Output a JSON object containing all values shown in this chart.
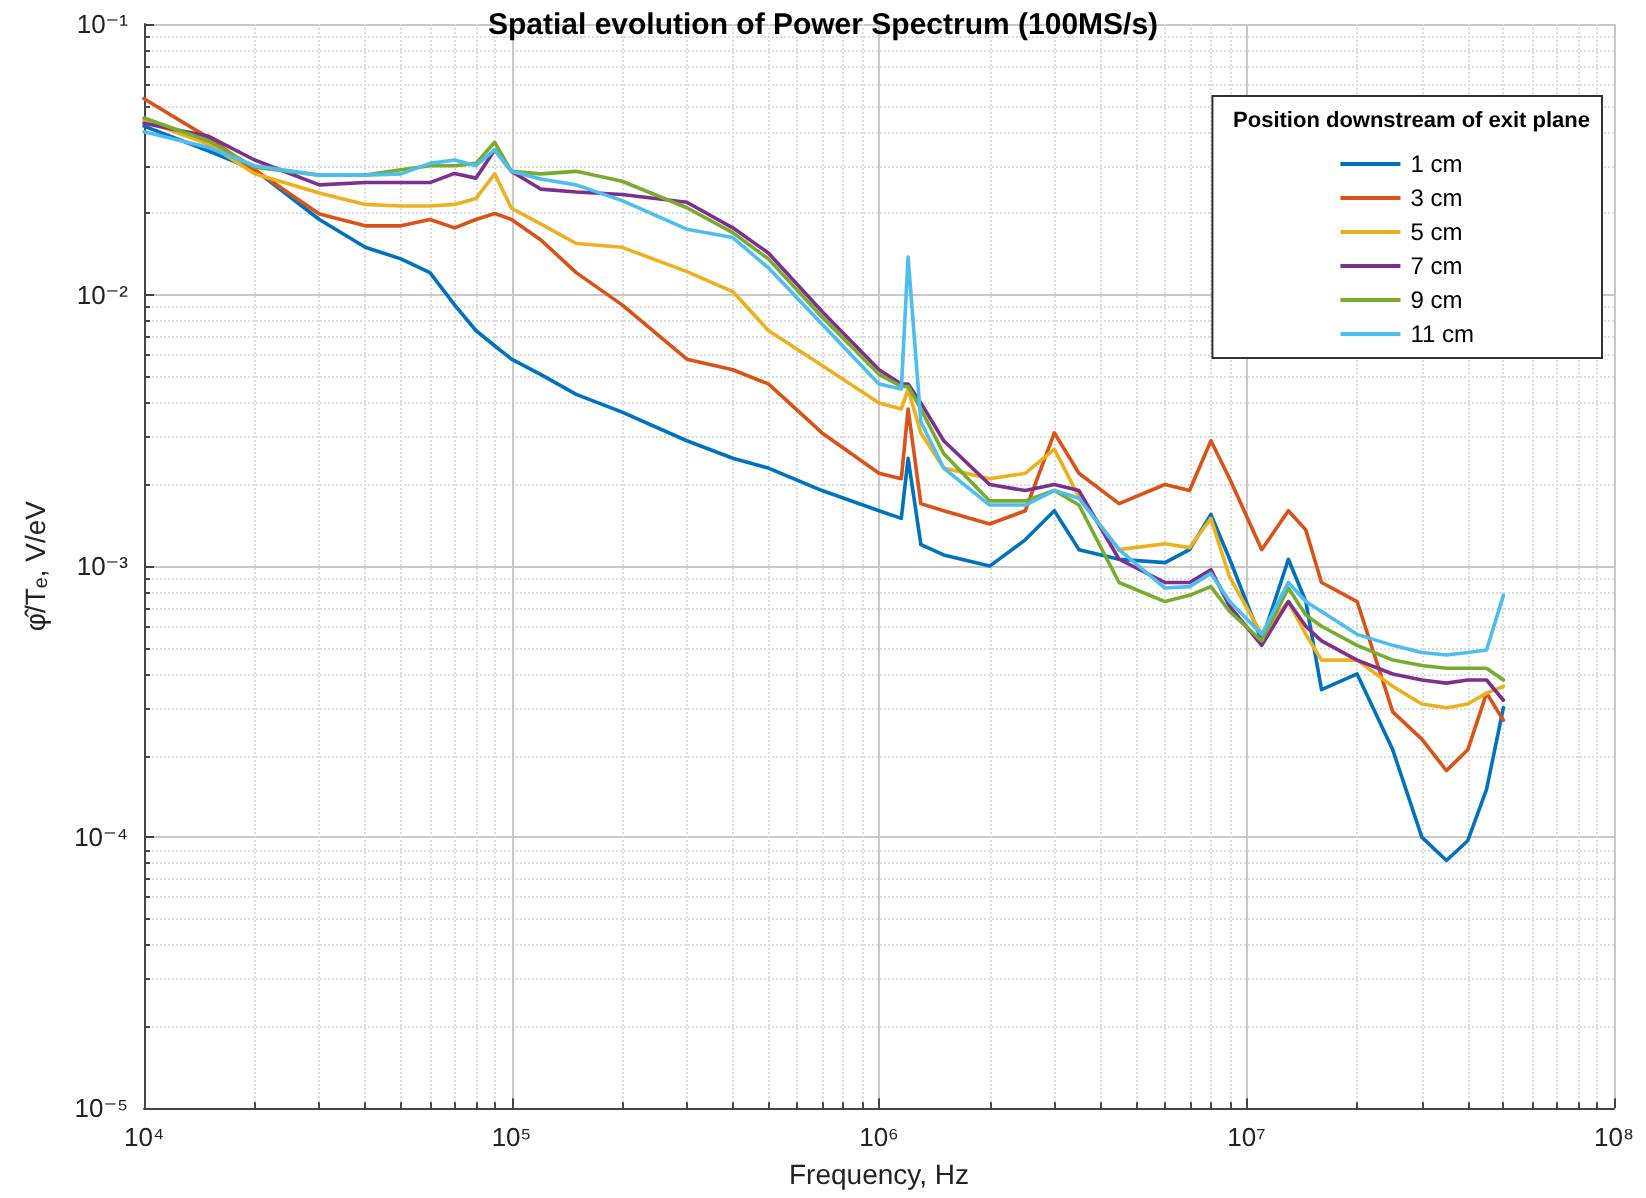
{
  "chart_data": {
    "type": "line",
    "title": "Spatial evolution of Power Spectrum (100MS/s)",
    "xlabel": "Frequency, Hz",
    "ylabel": "φ̂/T$_{e}$, V/eV",
    "legend_title": "Position downstream of exit plane",
    "x": [
      10000,
      15000,
      20000,
      30000,
      40000,
      50000,
      60000,
      70000,
      80000,
      90000,
      100000,
      120000,
      150000,
      200000,
      300000,
      400000,
      500000,
      700000,
      1000000,
      1150000,
      1200000,
      1300000,
      1500000,
      2000000,
      2500000,
      3000000,
      3500000,
      4500000,
      6000000,
      7000000,
      8000000,
      9000000,
      11000000,
      13000000,
      14500000,
      16000000,
      20000000,
      25000000,
      30000000,
      35000000,
      40000000,
      45000000,
      50000000
    ],
    "series": [
      {
        "name": "1 cm",
        "color": "#0072bd",
        "values": [
          0.042,
          0.034,
          0.029,
          0.019,
          0.015,
          0.0136,
          0.0121,
          0.0092,
          0.0074,
          0.0065,
          0.0058,
          0.0051,
          0.0043,
          0.0037,
          0.0029,
          0.0025,
          0.0023,
          0.0019,
          0.0016,
          0.0015,
          0.0025,
          0.0012,
          0.0011,
          0.001,
          0.00125,
          0.0016,
          0.00115,
          0.00106,
          0.00103,
          0.00115,
          0.00155,
          0.00106,
          0.00053,
          0.00106,
          0.00074,
          0.00035,
          0.0004,
          0.00021,
          0.0001,
          8.2e-05,
          9.7e-05,
          0.00015,
          0.0003
        ]
      },
      {
        "name": "3 cm",
        "color": "#d95319",
        "values": [
          0.053,
          0.038,
          0.029,
          0.0199,
          0.018,
          0.018,
          0.019,
          0.0177,
          0.019,
          0.02,
          0.019,
          0.016,
          0.0121,
          0.0092,
          0.0058,
          0.0053,
          0.0047,
          0.0031,
          0.0022,
          0.0021,
          0.0038,
          0.0017,
          0.0016,
          0.00143,
          0.0016,
          0.0031,
          0.0022,
          0.0017,
          0.002,
          0.0019,
          0.0029,
          0.0021,
          0.00115,
          0.0016,
          0.00136,
          0.00087,
          0.00074,
          0.00029,
          0.00023,
          0.000176,
          0.00021,
          0.00034,
          0.00027
        ]
      },
      {
        "name": "5 cm",
        "color": "#edb120",
        "values": [
          0.044,
          0.036,
          0.028,
          0.0238,
          0.0216,
          0.0213,
          0.0213,
          0.0216,
          0.0227,
          0.028,
          0.0209,
          0.0183,
          0.0155,
          0.015,
          0.0122,
          0.0103,
          0.0074,
          0.0055,
          0.004,
          0.0038,
          0.0045,
          0.0031,
          0.0023,
          0.0021,
          0.0022,
          0.0027,
          0.0018,
          0.00115,
          0.00121,
          0.00117,
          0.0015,
          0.00091,
          0.00056,
          0.00074,
          0.00056,
          0.00045,
          0.00045,
          0.00036,
          0.00031,
          0.0003,
          0.00031,
          0.00034,
          0.00036
        ]
      },
      {
        "name": "7 cm",
        "color": "#7e2f8e",
        "values": [
          0.043,
          0.0385,
          0.0315,
          0.0255,
          0.026,
          0.026,
          0.026,
          0.0281,
          0.027,
          0.0343,
          0.0286,
          0.0246,
          0.024,
          0.0235,
          0.022,
          0.0177,
          0.0143,
          0.0087,
          0.0053,
          0.0047,
          0.0047,
          0.004,
          0.0029,
          0.002,
          0.0019,
          0.002,
          0.0019,
          0.00106,
          0.00087,
          0.00087,
          0.00097,
          0.00071,
          0.00051,
          0.00074,
          0.0006,
          0.00053,
          0.00045,
          0.0004,
          0.00038,
          0.00037,
          0.00038,
          0.00038,
          0.00032
        ]
      },
      {
        "name": "9 cm",
        "color": "#77ac30",
        "values": [
          0.045,
          0.037,
          0.0296,
          0.0277,
          0.0277,
          0.029,
          0.03,
          0.03,
          0.0306,
          0.0366,
          0.0286,
          0.028,
          0.0286,
          0.0263,
          0.021,
          0.017,
          0.0136,
          0.0083,
          0.0051,
          0.0046,
          0.0046,
          0.0038,
          0.0026,
          0.00174,
          0.00174,
          0.0019,
          0.00168,
          0.00087,
          0.00074,
          0.00078,
          0.00084,
          0.00068,
          0.00053,
          0.00083,
          0.00066,
          0.0006,
          0.00051,
          0.00045,
          0.00043,
          0.00042,
          0.00042,
          0.00042,
          0.00038
        ]
      },
      {
        "name": "11 cm",
        "color": "#4dbeee",
        "values": [
          0.04,
          0.035,
          0.03,
          0.0277,
          0.0277,
          0.028,
          0.0306,
          0.0315,
          0.03,
          0.0343,
          0.0286,
          0.0268,
          0.0255,
          0.0223,
          0.0175,
          0.0163,
          0.0126,
          0.0078,
          0.0047,
          0.0045,
          0.0138,
          0.0034,
          0.0023,
          0.00168,
          0.00168,
          0.0019,
          0.00178,
          0.00115,
          0.00083,
          0.00084,
          0.00094,
          0.00074,
          0.00056,
          0.00087,
          0.00074,
          0.00068,
          0.00056,
          0.00051,
          0.00048,
          0.00047,
          0.00048,
          0.00049,
          0.00078
        ]
      }
    ],
    "xlim": [
      10000,
      100000000
    ],
    "ylim": [
      1e-05,
      0.1
    ],
    "xticks": [
      {
        "value": 10000,
        "label": "10⁴"
      },
      {
        "value": 100000,
        "label": "10⁵"
      },
      {
        "value": 1000000,
        "label": "10⁶"
      },
      {
        "value": 10000000,
        "label": "10⁷"
      },
      {
        "value": 100000000,
        "label": "10⁸"
      }
    ],
    "yticks": [
      {
        "value": 1e-05,
        "label": "10⁻⁵"
      },
      {
        "value": 0.0001,
        "label": "10⁻⁴"
      },
      {
        "value": 0.001,
        "label": "10⁻³"
      },
      {
        "value": 0.01,
        "label": "10⁻²"
      },
      {
        "value": 0.1,
        "label": "10⁻¹"
      }
    ],
    "log": "xy",
    "grid": true,
    "legend": "top right"
  }
}
